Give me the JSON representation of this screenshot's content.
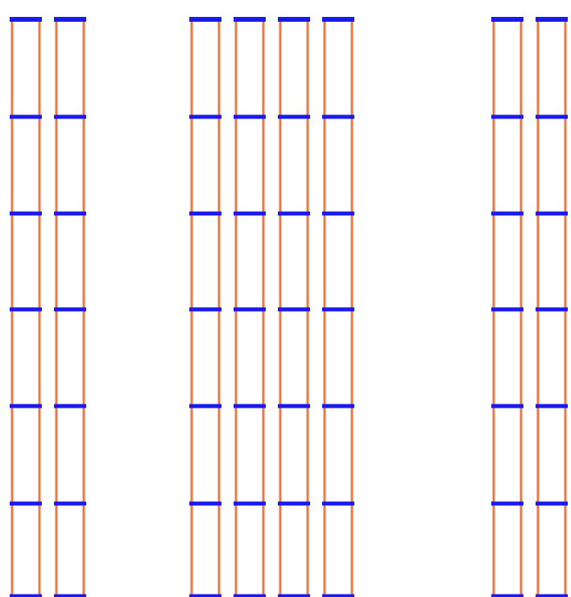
{
  "diagram": {
    "groups": [
      {
        "id": "group-left",
        "column_count": 2
      },
      {
        "id": "group-middle",
        "column_count": 4
      },
      {
        "id": "group-right",
        "column_count": 2
      }
    ],
    "rungs_per_column": 7,
    "colors": {
      "rail": "#ea7a45",
      "rung": "#1a1aee",
      "background": "#ffffff"
    }
  }
}
